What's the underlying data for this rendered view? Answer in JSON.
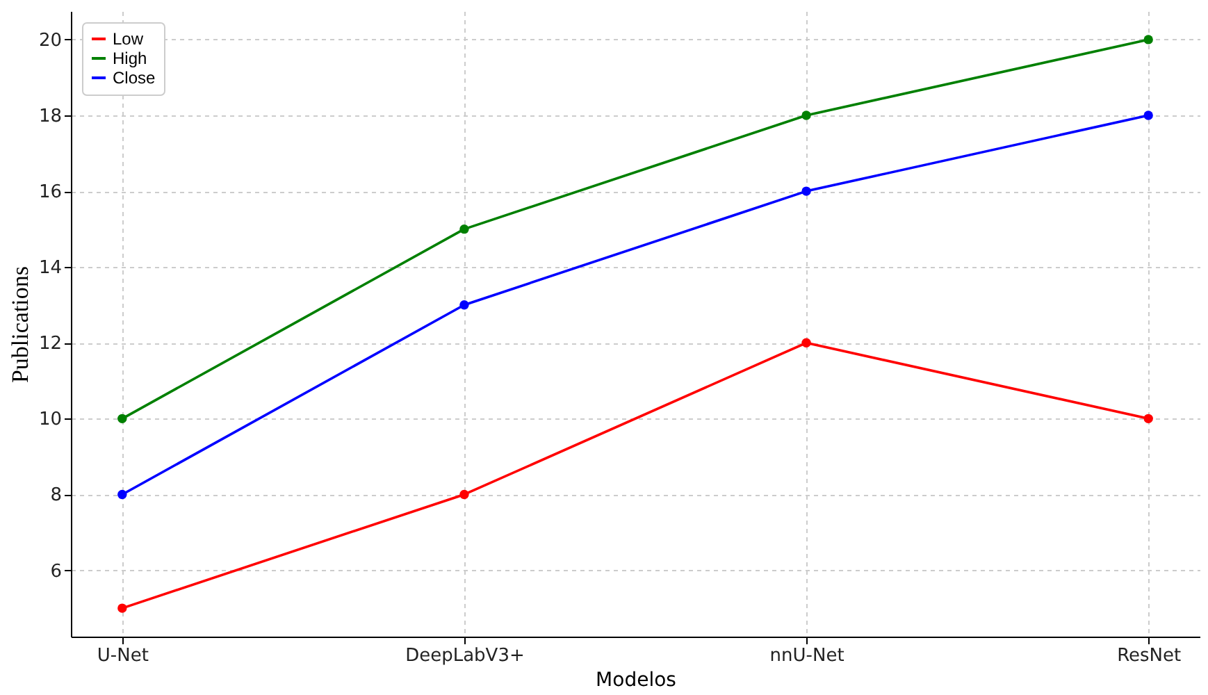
{
  "chart_data": {
    "type": "line",
    "xlabel": "Modelos",
    "ylabel": "Publications",
    "categories": [
      "U-Net",
      "DeepLabV3+",
      "nnU-Net",
      "ResNet"
    ],
    "series": [
      {
        "name": "Low",
        "color": "#ff0000",
        "values": [
          5,
          8,
          12,
          10
        ]
      },
      {
        "name": "High",
        "color": "#008000",
        "values": [
          10,
          15,
          18,
          20
        ]
      },
      {
        "name": "Close",
        "color": "#0000ff",
        "values": [
          8,
          13,
          16,
          18
        ]
      }
    ],
    "ylim": [
      4.25,
      20.75
    ],
    "yticks": [
      6,
      8,
      10,
      12,
      14,
      16,
      18,
      20
    ],
    "grid": true,
    "legend": "top left",
    "marker": "circle",
    "line_style": "solid"
  }
}
